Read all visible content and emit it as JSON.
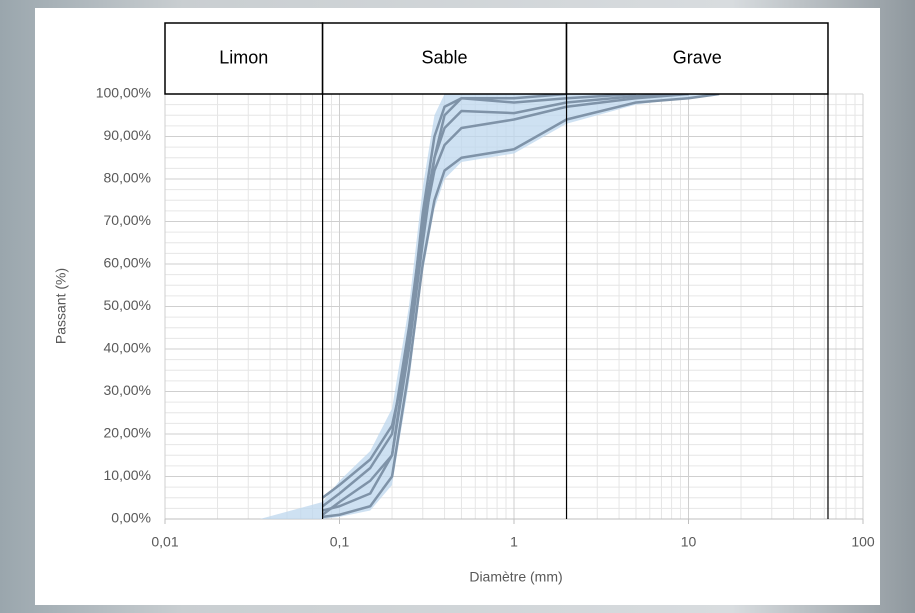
{
  "chart_data": {
    "type": "line",
    "x_label": "Diamètre (mm)",
    "y_label": "Passant (%)",
    "xscale": "log",
    "xlim": [
      0.01,
      100
    ],
    "xticks": [
      {
        "value": 0.01,
        "label": "0,01"
      },
      {
        "value": 0.1,
        "label": "0,1"
      },
      1,
      10,
      100
    ],
    "ylim": [
      0,
      100
    ],
    "yticks": [
      {
        "value": 0,
        "label": "0,00%"
      },
      {
        "value": 10,
        "label": "10,00%"
      },
      {
        "value": 20,
        "label": "20,00%"
      },
      {
        "value": 30,
        "label": "30,00%"
      },
      {
        "value": 40,
        "label": "40,00%"
      },
      {
        "value": 50,
        "label": "50,00%"
      },
      {
        "value": 60,
        "label": "60,00%"
      },
      {
        "value": 70,
        "label": "70,00%"
      },
      {
        "value": 80,
        "label": "80,00%"
      },
      {
        "value": 90,
        "label": "90,00%"
      },
      {
        "value": 100,
        "label": "100,00%"
      }
    ],
    "grid": true,
    "minor_grid": true,
    "zones": [
      {
        "label": "Limon",
        "from": 0.01,
        "to": 0.08
      },
      {
        "label": "Sable",
        "from": 0.08,
        "to": 2
      },
      {
        "label": "Grave",
        "from": 2,
        "to": 63
      }
    ],
    "envelope": {
      "color": "#bdd7ee",
      "x": [
        0.035,
        0.08,
        0.1,
        0.15,
        0.2,
        0.25,
        0.3,
        0.35,
        0.4,
        0.5,
        1,
        2,
        5,
        15
      ],
      "lower": [
        0,
        0,
        0.5,
        2,
        8,
        32,
        58,
        73,
        80,
        84,
        86,
        93,
        97.5,
        100
      ],
      "upper": [
        0,
        4,
        9,
        16,
        26,
        50,
        78,
        95,
        100,
        100,
        100,
        100,
        100,
        100
      ]
    },
    "series": [
      {
        "color": "#7f93a8",
        "x": [
          0.08,
          0.1,
          0.15,
          0.2,
          0.25,
          0.3,
          0.35,
          0.4,
          0.5,
          1,
          2,
          5
        ],
        "values": [
          5,
          8,
          14,
          22,
          40,
          65,
          85,
          95,
          99,
          98,
          99,
          100
        ]
      },
      {
        "color": "#7f93a8",
        "x": [
          0.08,
          0.1,
          0.15,
          0.2,
          0.25,
          0.3,
          0.35,
          0.4,
          0.5,
          1,
          2,
          5,
          10
        ],
        "values": [
          3,
          6,
          12,
          20,
          45,
          70,
          85,
          92,
          96,
          95.5,
          98,
          99.5,
          100
        ]
      },
      {
        "color": "#7f93a8",
        "x": [
          0.08,
          0.1,
          0.15,
          0.2,
          0.25,
          0.3,
          0.35,
          0.4,
          0.5,
          1,
          2,
          5,
          10
        ],
        "values": [
          1,
          4,
          9,
          15,
          40,
          68,
          82,
          88,
          92,
          94,
          97,
          99,
          100
        ]
      },
      {
        "color": "#7f93a8",
        "x": [
          0.08,
          0.1,
          0.15,
          0.2,
          0.25,
          0.3,
          0.35,
          0.4,
          0.5,
          1,
          2,
          5,
          10,
          15
        ],
        "values": [
          0.5,
          1,
          3,
          10,
          35,
          60,
          75,
          82,
          85,
          87,
          94,
          98,
          99,
          100
        ]
      },
      {
        "color": "#7f93a8",
        "x": [
          0.08,
          0.1,
          0.15,
          0.2,
          0.25,
          0.3,
          0.35,
          0.4,
          0.5,
          1,
          2
        ],
        "values": [
          2,
          3,
          6,
          15,
          42,
          72,
          90,
          97,
          99,
          99,
          100
        ]
      }
    ]
  }
}
